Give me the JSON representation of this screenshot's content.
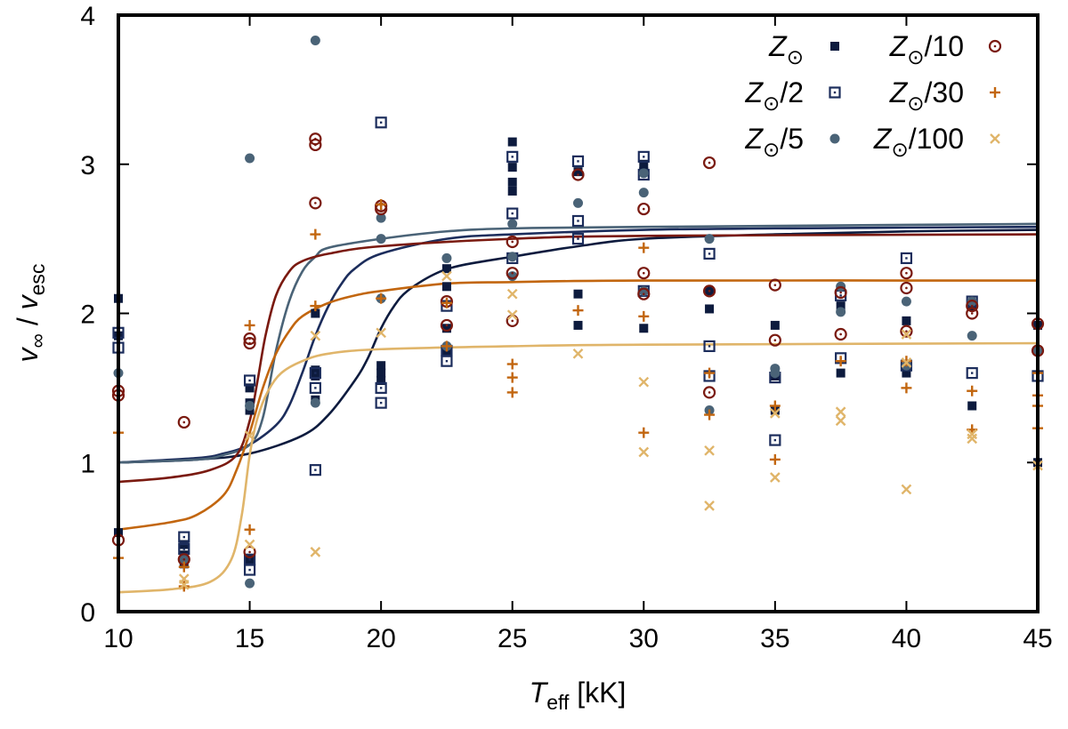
{
  "chart_data": {
    "type": "scatter",
    "title": "",
    "xlabel": {
      "main": "T",
      "sub": "eff",
      "unit": " [kK]"
    },
    "ylabel": {
      "num_main": "v",
      "num_sub": "∞",
      "sep": " / ",
      "den_main": "v",
      "den_sub": "esc"
    },
    "xlim": [
      10,
      45
    ],
    "ylim": [
      0,
      4
    ],
    "xticks": [
      10,
      15,
      20,
      25,
      30,
      35,
      40,
      45
    ],
    "yticks": [
      0,
      1,
      2,
      3,
      4
    ],
    "grid": false,
    "legend_position": "top-right",
    "series": [
      {
        "name": "Z⊙",
        "label_main": "Z",
        "label_suffix": "",
        "marker": "filled-square",
        "color": "#0d1b3e",
        "points": [
          [
            10,
            2.1
          ],
          [
            10,
            1.85
          ],
          [
            10,
            0.53
          ],
          [
            12.5,
            0.45
          ],
          [
            12.5,
            0.38
          ],
          [
            12.5,
            0.32
          ],
          [
            15,
            1.5
          ],
          [
            15,
            1.4
          ],
          [
            15,
            1.35
          ],
          [
            15,
            0.35
          ],
          [
            17.5,
            2.0
          ],
          [
            17.5,
            1.62
          ],
          [
            17.5,
            1.58
          ],
          [
            17.5,
            1.42
          ],
          [
            20,
            1.65
          ],
          [
            20,
            1.6
          ],
          [
            20,
            1.55
          ],
          [
            22.5,
            2.3
          ],
          [
            22.5,
            2.18
          ],
          [
            22.5,
            1.9
          ],
          [
            22.5,
            1.75
          ],
          [
            25,
            3.15
          ],
          [
            25,
            2.98
          ],
          [
            25,
            2.88
          ],
          [
            25,
            2.82
          ],
          [
            27.5,
            2.95
          ],
          [
            27.5,
            2.13
          ],
          [
            27.5,
            1.92
          ],
          [
            30,
            3.0
          ],
          [
            30,
            2.95
          ],
          [
            30,
            1.9
          ],
          [
            32.5,
            2.15
          ],
          [
            32.5,
            2.03
          ],
          [
            35,
            1.92
          ],
          [
            35,
            1.58
          ],
          [
            35,
            1.35
          ],
          [
            37.5,
            2.05
          ],
          [
            37.5,
            1.6
          ],
          [
            40,
            1.95
          ],
          [
            40,
            1.6
          ],
          [
            42.5,
            2.05
          ],
          [
            42.5,
            1.38
          ],
          [
            45,
            1.92
          ],
          [
            45,
            1.0
          ]
        ],
        "fit": [
          [
            10,
            1.0
          ],
          [
            13,
            1.02
          ],
          [
            15,
            1.06
          ],
          [
            17,
            1.18
          ],
          [
            18,
            1.32
          ],
          [
            19,
            1.55
          ],
          [
            19.5,
            1.7
          ],
          [
            20,
            1.9
          ],
          [
            20.5,
            2.05
          ],
          [
            21,
            2.15
          ],
          [
            22,
            2.26
          ],
          [
            23,
            2.32
          ],
          [
            25,
            2.38
          ],
          [
            27.5,
            2.45
          ],
          [
            30,
            2.5
          ],
          [
            35,
            2.53
          ],
          [
            40,
            2.55
          ],
          [
            45,
            2.56
          ]
        ]
      },
      {
        "name": "Z⊙/2",
        "label_main": "Z",
        "label_suffix": "/2",
        "marker": "open-square-dot",
        "color": "#1c2d5c",
        "points": [
          [
            10,
            1.87
          ],
          [
            10,
            1.77
          ],
          [
            12.5,
            0.5
          ],
          [
            12.5,
            0.42
          ],
          [
            15,
            1.55
          ],
          [
            15,
            0.35
          ],
          [
            15,
            0.28
          ],
          [
            17.5,
            1.6
          ],
          [
            17.5,
            1.5
          ],
          [
            17.5,
            0.95
          ],
          [
            20,
            3.28
          ],
          [
            20,
            1.5
          ],
          [
            20,
            1.4
          ],
          [
            22.5,
            2.05
          ],
          [
            22.5,
            1.75
          ],
          [
            22.5,
            1.68
          ],
          [
            25,
            3.05
          ],
          [
            25,
            2.67
          ],
          [
            25,
            2.37
          ],
          [
            27.5,
            3.02
          ],
          [
            27.5,
            2.62
          ],
          [
            27.5,
            2.5
          ],
          [
            30,
            3.05
          ],
          [
            30,
            2.93
          ],
          [
            30,
            2.15
          ],
          [
            32.5,
            2.4
          ],
          [
            32.5,
            1.78
          ],
          [
            32.5,
            1.58
          ],
          [
            35,
            1.57
          ],
          [
            35,
            1.15
          ],
          [
            37.5,
            2.12
          ],
          [
            37.5,
            1.7
          ],
          [
            40,
            2.37
          ],
          [
            40,
            1.65
          ],
          [
            42.5,
            2.08
          ],
          [
            42.5,
            1.6
          ],
          [
            45,
            1.58
          ]
        ],
        "fit": [
          [
            10,
            1.0
          ],
          [
            13,
            1.03
          ],
          [
            14,
            1.06
          ],
          [
            15,
            1.12
          ],
          [
            16,
            1.25
          ],
          [
            16.5,
            1.38
          ],
          [
            17,
            1.6
          ],
          [
            17.5,
            1.85
          ],
          [
            18,
            2.05
          ],
          [
            18.5,
            2.2
          ],
          [
            19,
            2.3
          ],
          [
            20,
            2.4
          ],
          [
            22.5,
            2.5
          ],
          [
            25,
            2.53
          ],
          [
            30,
            2.56
          ],
          [
            35,
            2.57
          ],
          [
            45,
            2.58
          ]
        ]
      },
      {
        "name": "Z⊙/5",
        "label_main": "Z",
        "label_suffix": "/5",
        "marker": "filled-circle",
        "color": "#4a6377",
        "points": [
          [
            10,
            1.6
          ],
          [
            12.5,
            0.35
          ],
          [
            15,
            3.04
          ],
          [
            15,
            1.38
          ],
          [
            15,
            0.19
          ],
          [
            17.5,
            3.83
          ],
          [
            17.5,
            1.4
          ],
          [
            20,
            2.64
          ],
          [
            20,
            2.5
          ],
          [
            20,
            2.1
          ],
          [
            22.5,
            2.37
          ],
          [
            22.5,
            1.78
          ],
          [
            25,
            2.6
          ],
          [
            25,
            2.38
          ],
          [
            25,
            2.25
          ],
          [
            27.5,
            2.74
          ],
          [
            30,
            2.94
          ],
          [
            30,
            2.81
          ],
          [
            30,
            2.15
          ],
          [
            32.5,
            2.5
          ],
          [
            32.5,
            1.35
          ],
          [
            35,
            1.63
          ],
          [
            35,
            1.6
          ],
          [
            37.5,
            2.18
          ],
          [
            37.5,
            2.01
          ],
          [
            40,
            2.08
          ],
          [
            40,
            1.65
          ],
          [
            42.5,
            2.08
          ],
          [
            42.5,
            1.85
          ],
          [
            45,
            1.75
          ]
        ],
        "fit": [
          [
            10,
            1.0
          ],
          [
            13,
            1.02
          ],
          [
            14,
            1.05
          ],
          [
            15,
            1.12
          ],
          [
            15.5,
            1.3
          ],
          [
            16,
            1.75
          ],
          [
            16.5,
            2.08
          ],
          [
            17,
            2.28
          ],
          [
            17.5,
            2.38
          ],
          [
            18,
            2.44
          ],
          [
            20,
            2.5
          ],
          [
            22.5,
            2.55
          ],
          [
            25,
            2.57
          ],
          [
            30,
            2.58
          ],
          [
            45,
            2.6
          ]
        ]
      },
      {
        "name": "Z⊙/10",
        "label_main": "Z",
        "label_suffix": "/10",
        "marker": "open-circle-dot",
        "color": "#7a1a10",
        "points": [
          [
            10,
            1.48
          ],
          [
            10,
            1.45
          ],
          [
            10,
            0.48
          ],
          [
            12.5,
            1.27
          ],
          [
            12.5,
            0.35
          ],
          [
            15,
            1.83
          ],
          [
            15,
            1.8
          ],
          [
            15,
            0.4
          ],
          [
            17.5,
            3.17
          ],
          [
            17.5,
            3.13
          ],
          [
            17.5,
            2.74
          ],
          [
            20,
            2.72
          ],
          [
            20,
            2.7
          ],
          [
            22.5,
            2.08
          ],
          [
            22.5,
            1.92
          ],
          [
            25,
            2.48
          ],
          [
            25,
            2.27
          ],
          [
            25,
            1.95
          ],
          [
            27.5,
            2.93
          ],
          [
            30,
            2.7
          ],
          [
            30,
            2.27
          ],
          [
            30,
            2.13
          ],
          [
            32.5,
            3.01
          ],
          [
            32.5,
            2.15
          ],
          [
            32.5,
            1.47
          ],
          [
            35,
            2.19
          ],
          [
            35,
            1.82
          ],
          [
            37.5,
            2.14
          ],
          [
            37.5,
            1.86
          ],
          [
            40,
            2.27
          ],
          [
            40,
            2.17
          ],
          [
            40,
            1.88
          ],
          [
            42.5,
            2.05
          ],
          [
            42.5,
            2.0
          ],
          [
            45,
            1.93
          ],
          [
            45,
            1.75
          ]
        ],
        "fit": [
          [
            10,
            0.87
          ],
          [
            12,
            0.9
          ],
          [
            13.5,
            0.95
          ],
          [
            14.5,
            1.05
          ],
          [
            15,
            1.28
          ],
          [
            15.3,
            1.55
          ],
          [
            15.6,
            1.85
          ],
          [
            16,
            2.12
          ],
          [
            16.5,
            2.28
          ],
          [
            17,
            2.35
          ],
          [
            18,
            2.4
          ],
          [
            20,
            2.45
          ],
          [
            25,
            2.5
          ],
          [
            30,
            2.52
          ],
          [
            45,
            2.53
          ]
        ]
      },
      {
        "name": "Z⊙/30",
        "label_main": "Z",
        "label_suffix": "/30",
        "marker": "plus",
        "color": "#c2660f",
        "points": [
          [
            10,
            1.2
          ],
          [
            10,
            0.36
          ],
          [
            12.5,
            0.3
          ],
          [
            12.5,
            0.17
          ],
          [
            15,
            1.92
          ],
          [
            15,
            0.55
          ],
          [
            17.5,
            2.53
          ],
          [
            17.5,
            2.05
          ],
          [
            20,
            2.73
          ],
          [
            20,
            2.1
          ],
          [
            22.5,
            2.07
          ],
          [
            22.5,
            1.78
          ],
          [
            25,
            1.66
          ],
          [
            25,
            1.57
          ],
          [
            25,
            1.47
          ],
          [
            27.5,
            2.02
          ],
          [
            30,
            2.44
          ],
          [
            30,
            1.98
          ],
          [
            30,
            1.2
          ],
          [
            32.5,
            1.6
          ],
          [
            32.5,
            1.32
          ],
          [
            35,
            1.38
          ],
          [
            35,
            1.02
          ],
          [
            37.5,
            1.68
          ],
          [
            40,
            1.68
          ],
          [
            40,
            1.5
          ],
          [
            42.5,
            1.48
          ],
          [
            42.5,
            1.22
          ],
          [
            45,
            1.6
          ],
          [
            45,
            1.45
          ],
          [
            45,
            1.38
          ],
          [
            45,
            1.23
          ]
        ],
        "fit": [
          [
            10,
            0.55
          ],
          [
            12,
            0.6
          ],
          [
            13,
            0.65
          ],
          [
            14,
            0.78
          ],
          [
            14.5,
            0.95
          ],
          [
            15,
            1.2
          ],
          [
            15.5,
            1.5
          ],
          [
            16,
            1.73
          ],
          [
            16.5,
            1.88
          ],
          [
            17,
            1.98
          ],
          [
            18,
            2.07
          ],
          [
            19,
            2.12
          ],
          [
            20,
            2.15
          ],
          [
            22.5,
            2.2
          ],
          [
            25,
            2.21
          ],
          [
            30,
            2.22
          ],
          [
            45,
            2.22
          ]
        ]
      },
      {
        "name": "Z⊙/100",
        "label_main": "Z",
        "label_suffix": "/100",
        "marker": "cross",
        "color": "#e0b56a",
        "points": [
          [
            12.5,
            0.22
          ],
          [
            12.5,
            0.18
          ],
          [
            15,
            1.18
          ],
          [
            15,
            0.45
          ],
          [
            17.5,
            1.85
          ],
          [
            17.5,
            0.4
          ],
          [
            20,
            1.87
          ],
          [
            22.5,
            2.25
          ],
          [
            25,
            2.13
          ],
          [
            25,
            1.99
          ],
          [
            27.5,
            1.73
          ],
          [
            30,
            1.54
          ],
          [
            30,
            1.07
          ],
          [
            32.5,
            1.08
          ],
          [
            32.5,
            0.71
          ],
          [
            35,
            1.33
          ],
          [
            35,
            0.9
          ],
          [
            37.5,
            1.34
          ],
          [
            37.5,
            1.28
          ],
          [
            40,
            1.86
          ],
          [
            40,
            1.67
          ],
          [
            40,
            0.82
          ],
          [
            42.5,
            1.19
          ],
          [
            42.5,
            1.16
          ],
          [
            45,
            0.98
          ]
        ],
        "fit": [
          [
            10,
            0.13
          ],
          [
            12,
            0.15
          ],
          [
            13.5,
            0.2
          ],
          [
            14.3,
            0.35
          ],
          [
            14.7,
            0.65
          ],
          [
            15,
            1.05
          ],
          [
            15.3,
            1.3
          ],
          [
            15.7,
            1.48
          ],
          [
            16.2,
            1.6
          ],
          [
            17,
            1.68
          ],
          [
            18,
            1.73
          ],
          [
            20,
            1.76
          ],
          [
            25,
            1.78
          ],
          [
            30,
            1.79
          ],
          [
            45,
            1.8
          ]
        ]
      }
    ]
  }
}
